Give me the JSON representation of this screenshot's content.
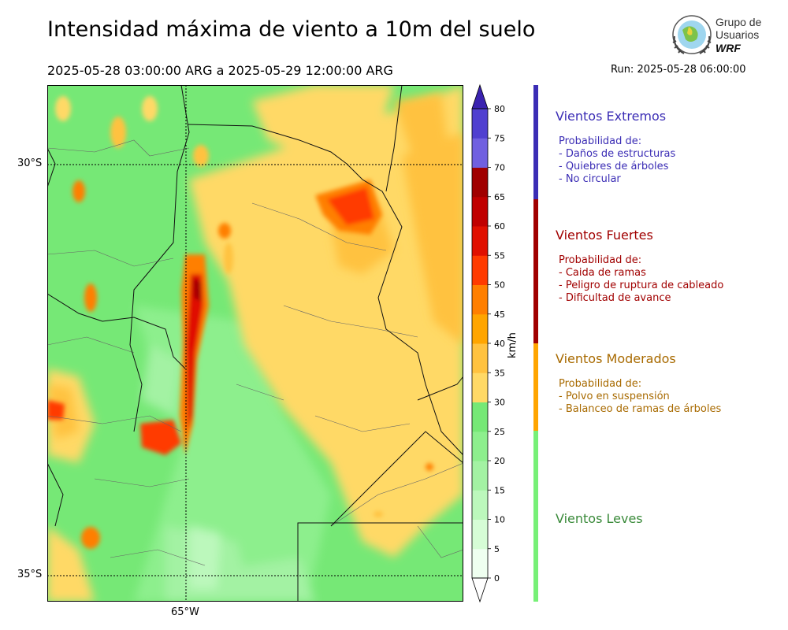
{
  "header": {
    "title": "Intensidad máxima de viento a 10m del suelo",
    "date_range": "2025-05-28 03:00:00 ARG  a  2025-05-29 12:00:00 ARG",
    "run": "Run: 2025-05-28 06:00:00"
  },
  "logo": {
    "line1": "Grupo de",
    "line2": "Usuarios",
    "line3": "WRF"
  },
  "map": {
    "lat_labels": [
      "30°S",
      "35°S"
    ],
    "lon_labels": [
      "65°W"
    ]
  },
  "colorbar": {
    "unit": "km/h",
    "ticks": [
      "0",
      "5",
      "10",
      "15",
      "20",
      "25",
      "30",
      "35",
      "40",
      "45",
      "50",
      "55",
      "60",
      "65",
      "70",
      "75",
      "80"
    ],
    "colors": [
      "#effff0",
      "#d6fdd6",
      "#bcf8bc",
      "#a3f2a3",
      "#8def8d",
      "#76e876",
      "#ffd966",
      "#ffc240",
      "#ffa500",
      "#ff7f00",
      "#ff3b00",
      "#e01000",
      "#c00000",
      "#a00000",
      "#7060e0",
      "#5040d0",
      "#3d28b8"
    ],
    "extend_top_color": "#3a22b0",
    "extend_bottom_color": "#ffffff"
  },
  "legend": {
    "extremos": {
      "title": "Vientos Extremos",
      "intro": "Probabilidad de:",
      "items": [
        "- Daños de estructuras",
        "- Quiebres de árboles",
        "- No circular"
      ],
      "color": "#3b2db5"
    },
    "fuertes": {
      "title": "Vientos Fuertes",
      "intro": "Probabilidad de:",
      "items": [
        "- Caida de ramas",
        "- Peligro de ruptura de cableado",
        "- Dificultad de avance"
      ],
      "color": "#a10000"
    },
    "moderados": {
      "title": "Vientos Moderados",
      "intro": "Probabilidad de:",
      "items": [
        "- Polvo en suspensión",
        "- Balanceo de ramas de árboles"
      ],
      "color": "#a86a00"
    },
    "leves": {
      "title": "Vientos Leves",
      "color": "#3a8a3a"
    }
  }
}
